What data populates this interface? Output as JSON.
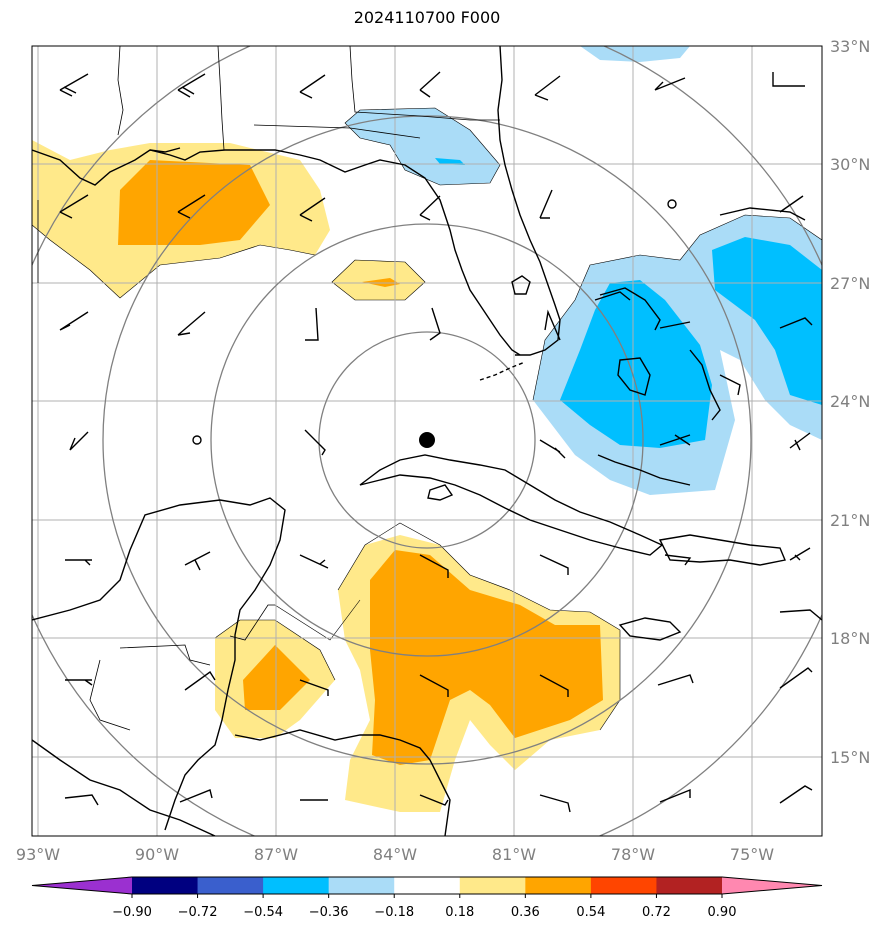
{
  "title": "2024110700 F000",
  "map": {
    "lon_labels": [
      "93°W",
      "90°W",
      "87°W",
      "84°W",
      "81°W",
      "78°W",
      "75°W"
    ],
    "lat_labels": [
      "33°N",
      "30°N",
      "27°N",
      "24°N",
      "21°N",
      "18°N",
      "15°N"
    ],
    "center_marker": "storm-center-dot"
  },
  "colorbar": {
    "ticks": [
      "−0.90",
      "−0.72",
      "−0.54",
      "−0.36",
      "−0.18",
      "0.18",
      "0.36",
      "0.54",
      "0.72",
      "0.90"
    ],
    "colors": [
      "#9b30d0",
      "#000080",
      "#3a5fcd",
      "#00bfff",
      "#aadcf7",
      "#ffffff",
      "#ffe98a",
      "#ffa500",
      "#ff4500",
      "#b22222",
      "#ff88b0"
    ]
  }
}
